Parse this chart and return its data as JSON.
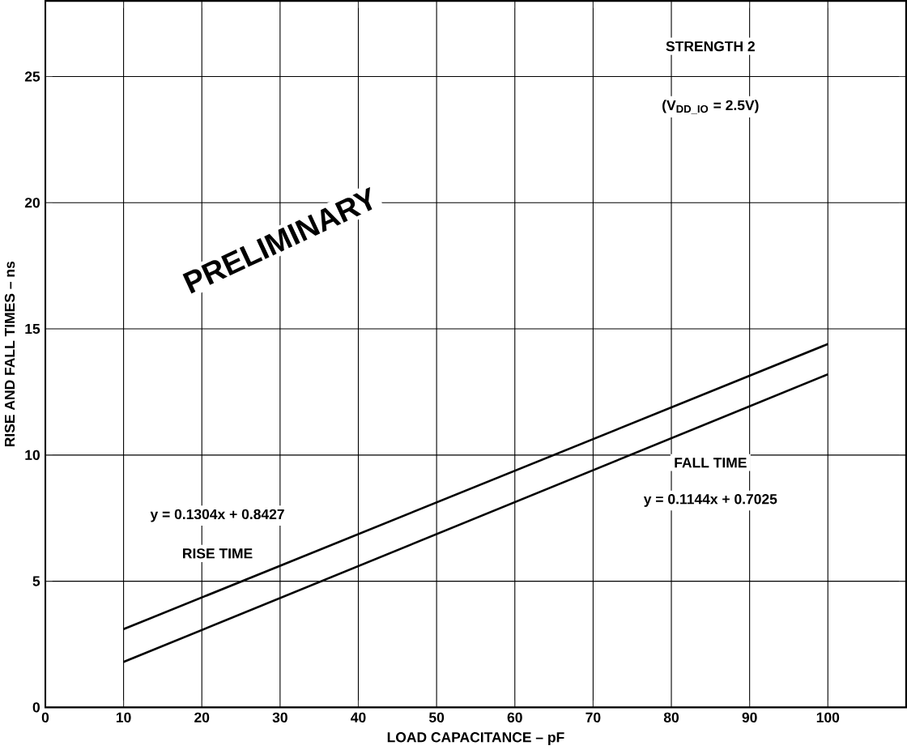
{
  "chart_data": {
    "type": "line",
    "xlabel": "LOAD CAPACITANCE – pF",
    "ylabel": "RISE AND FALL TIMES – ns",
    "x": [
      10,
      100
    ],
    "series": [
      {
        "name": "RISE TIME",
        "color": "#000000",
        "values": [
          3.1,
          14.4
        ]
      },
      {
        "name": "FALL TIME",
        "color": "#000000",
        "values": [
          1.8,
          13.2
        ]
      }
    ],
    "annotations": [
      "STRENGTH 2",
      "(V$_{DD_IO}$ = 2.5V)",
      "y = 0.1304x + 0.8427",
      "y = 0.1144x + 0.7025",
      "PRELIMINARY"
    ],
    "xlim": [
      0,
      110
    ],
    "ylim": [
      0,
      28
    ],
    "xticks": [
      0,
      10,
      20,
      30,
      40,
      50,
      60,
      70,
      80,
      90,
      100
    ],
    "yticks": [
      0,
      5,
      10,
      15,
      20,
      25
    ],
    "grid": true,
    "marker": "none",
    "line_style": "solid"
  }
}
